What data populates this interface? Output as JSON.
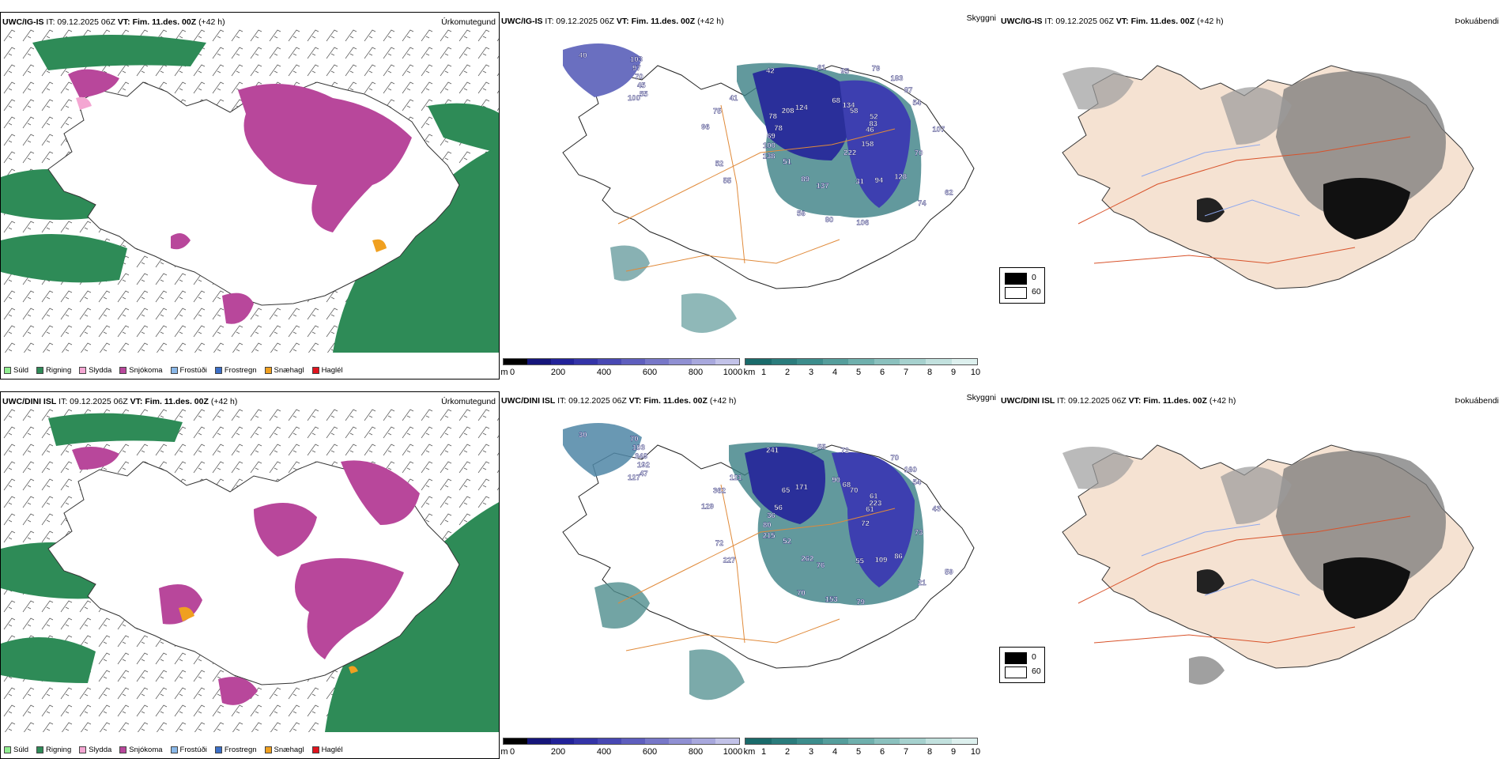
{
  "rows": [
    {
      "model": "UWC/IG-IS",
      "it_label": "IT: 09.12.2025 06Z",
      "vt_label": "VT: Fim. 11.des. 00Z",
      "lead": "(+42 h)",
      "ptype_title": "Úrkomutegund",
      "vis_title": "Skyggni",
      "fog_title": "Þokuábendi",
      "snow_labels": [
        "40",
        "51",
        "95",
        "74",
        "78",
        "54",
        "56",
        "55",
        "70",
        "52",
        "58",
        "31",
        "41",
        "46",
        "45",
        "61",
        "62",
        "69",
        "87",
        "80",
        "124",
        "70",
        "55",
        "134",
        "94",
        "75",
        "83",
        "89",
        "97",
        "158",
        "100",
        "183",
        "106",
        "208",
        "107",
        "103",
        "68",
        "128",
        "96",
        "52",
        "137",
        "42",
        "100",
        "138",
        "79",
        "222",
        "78"
      ]
    },
    {
      "model": "UWC/DINI ISL",
      "it_label": "IT: 09.12.2025 06Z",
      "vt_label": "VT: Fim. 11.des. 00Z",
      "lead": "(+42 h)",
      "ptype_title": "Úrkomutegund",
      "vis_title": "Skyggni",
      "fog_title": "Þokuábendi",
      "snow_labels": [
        "30",
        "52",
        "72",
        "21",
        "56",
        "54",
        "70",
        "47",
        "73",
        "72",
        "70",
        "55",
        "121",
        "61",
        "192",
        "55",
        "59",
        "36",
        "160",
        "153",
        "171",
        "348",
        "227",
        "68",
        "109",
        "362",
        "223",
        "262",
        "103",
        "72",
        "80",
        "70",
        "79",
        "65",
        "43",
        "70",
        "90",
        "86",
        "129",
        "61",
        "76",
        "241",
        "127",
        "215"
      ]
    }
  ],
  "ptype_legend": [
    {
      "label": "Súld",
      "color": "#90ee90"
    },
    {
      "label": "Rigning",
      "color": "#2e8b57"
    },
    {
      "label": "Slydda",
      "color": "#f4a6d2"
    },
    {
      "label": "Snjókoma",
      "color": "#b8479b"
    },
    {
      "label": "Frostúði",
      "color": "#8ab8e8"
    },
    {
      "label": "Frostregn",
      "color": "#3b6fc7"
    },
    {
      "label": "Snæhagl",
      "color": "#f0a020"
    },
    {
      "label": "Haglél",
      "color": "#e0141e"
    }
  ],
  "snow_colorbar": {
    "unit": "m",
    "ticks": [
      "0",
      "200",
      "400",
      "600",
      "800",
      "1000"
    ]
  },
  "vis_colorbar": {
    "unit": "km",
    "ticks": [
      "1",
      "2",
      "3",
      "4",
      "5",
      "6",
      "7",
      "8",
      "9",
      "10"
    ]
  },
  "fog_legend": {
    "top": "0",
    "bottom": "60"
  }
}
